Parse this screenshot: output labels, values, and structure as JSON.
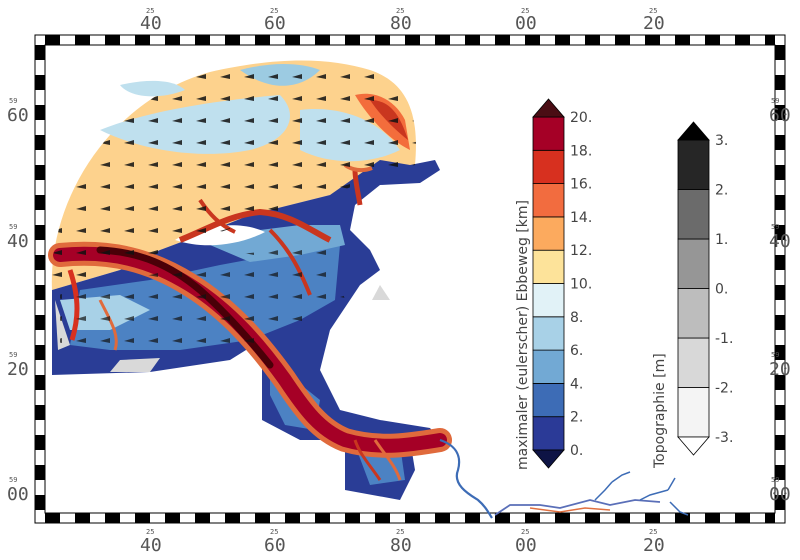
{
  "map": {
    "x_ticks": [
      {
        "major": "40",
        "minor": "25"
      },
      {
        "major": "60",
        "minor": "25"
      },
      {
        "major": "80",
        "minor": "25"
      },
      {
        "major": "00",
        "minor": "25"
      },
      {
        "major": "20",
        "minor": "25"
      }
    ],
    "y_ticks": [
      {
        "major": "60",
        "minor": "59"
      },
      {
        "major": "40",
        "minor": "59"
      },
      {
        "major": "20",
        "minor": "59"
      },
      {
        "major": "00",
        "minor": "59"
      }
    ],
    "colors": {
      "water_low": "#2a3d96",
      "water_mid": "#4c82c3",
      "shallow": "#bfe0ee",
      "flat_high": "#fdd28d",
      "channel": "#8b0a1e",
      "channel_edge": "#e06a3c",
      "land_gray": "#d9d9d9"
    }
  },
  "colorbar_ebbe": {
    "title": "maximaler (eulerscher) Ebbeweg [km]",
    "labels": [
      "20.",
      "18.",
      "16.",
      "14.",
      "12.",
      "10.",
      "8.",
      "6.",
      "4.",
      "2.",
      "0."
    ],
    "colors": [
      "#2b3a97",
      "#3d6cb6",
      "#72a9d4",
      "#a8d1e7",
      "#e1f2f7",
      "#fde39a",
      "#fcaa5e",
      "#f26c3f",
      "#d7301f",
      "#a50026"
    ],
    "top_arrow_color": "#4a0d14",
    "bottom_arrow_color": "#0e1445"
  },
  "colorbar_topo": {
    "title": "Topographie [m]",
    "labels": [
      "3.",
      "2.",
      "1.",
      "0.",
      "-1.",
      "-2.",
      "-3."
    ],
    "colors": [
      "#f4f4f4",
      "#d8d8d8",
      "#bdbdbd",
      "#969696",
      "#6b6b6b",
      "#262626"
    ],
    "top_arrow_color": "#000000",
    "bottom_arrow_color": "#ffffff"
  }
}
